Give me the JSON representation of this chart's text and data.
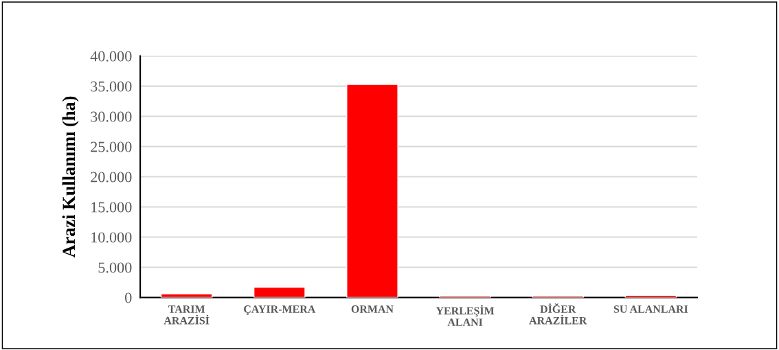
{
  "chart_data": {
    "type": "bar",
    "ylabel": "Arazi Kullanımı (ha)",
    "categories": [
      "TARIM\nARAZİSİ",
      "ÇAYIR-MERA",
      "ORMAN",
      "YERLEŞİM\nALANI",
      "DİĞER\nARAZİLER",
      "SU ALANLARI"
    ],
    "values": [
      600,
      1700,
      35300,
      250,
      250,
      350
    ],
    "color": "#ff0000",
    "ylim": [
      0,
      40000
    ],
    "yticks": [
      0,
      {
        "value": 5000,
        "label": "5.000"
      },
      {
        "value": 10000,
        "label": "10.000"
      },
      {
        "value": 15000,
        "label": "15.000"
      },
      {
        "value": 20000,
        "label": "20.000"
      },
      {
        "value": 25000,
        "label": "25.000"
      },
      {
        "value": 30000,
        "label": "30.000"
      },
      {
        "value": 35000,
        "label": "35.000"
      },
      {
        "value": 40000,
        "label": "40.000"
      }
    ],
    "grid": "y"
  }
}
